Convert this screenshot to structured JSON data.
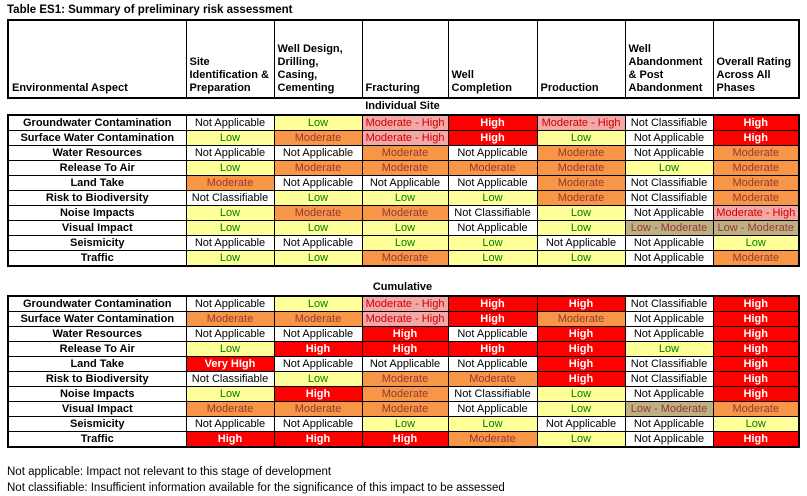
{
  "title": "Table ES1: Summary of preliminary risk assessment",
  "columns": [
    "Environmental Aspect",
    "Site Identification & Preparation",
    "Well Design, Drilling, Casing, Cementing",
    "Fracturing",
    "Well Completion",
    "Production",
    "Well Abandonment & Post Abandonment",
    "Overall Rating Across All Phases"
  ],
  "palette": {
    "Not Applicable": {
      "bg": "#FFFFFF",
      "fg": "#000000",
      "bold": false
    },
    "Not Classifiable": {
      "bg": "#FFFFFF",
      "fg": "#000000",
      "bold": false
    },
    "Low": {
      "bg": "#FFFF99",
      "fg": "#008000",
      "bold": false
    },
    "Moderate": {
      "bg": "#F79646",
      "fg": "#953735",
      "bold": false
    },
    "High": {
      "bg": "#FF0000",
      "fg": "#FFFFFF",
      "bold": true
    },
    "Very HIgh": {
      "bg": "#FF0000",
      "fg": "#FFFFFF",
      "bold": true
    },
    "Moderate - High": {
      "bg": "#F4A7A7",
      "fg": "#CC0000",
      "bold": false
    },
    "Low - Moderate": {
      "bg": "#BFB083",
      "fg": "#953735",
      "bold": false
    }
  },
  "sections": [
    {
      "label": "Individual Site",
      "rows": [
        {
          "aspect": "Groundwater Contamination",
          "cells": [
            "Not Applicable",
            "Low",
            "Moderate - High",
            "High",
            "Moderate - High",
            "Not Classifiable",
            "High"
          ]
        },
        {
          "aspect": "Surface Water Contamination",
          "cells": [
            "Low",
            "Moderate",
            "Moderate - High",
            "High",
            "Low",
            "Not Applicable",
            "High"
          ]
        },
        {
          "aspect": "Water Resources",
          "cells": [
            "Not Applicable",
            "Not Applicable",
            "Moderate",
            "Not Applicable",
            "Moderate",
            "Not Applicable",
            "Moderate"
          ]
        },
        {
          "aspect": "Release To Air",
          "cells": [
            "Low",
            "Moderate",
            "Moderate",
            "Moderate",
            "Moderate",
            "Low",
            "Moderate"
          ]
        },
        {
          "aspect": "Land Take",
          "cells": [
            "Moderate",
            "Not Applicable",
            "Not Applicable",
            "Not Applicable",
            "Moderate",
            "Not Classifiable",
            "Moderate"
          ]
        },
        {
          "aspect": "Risk to Biodiversity",
          "cells": [
            "Not Classifiable",
            "Low",
            "Low",
            "Low",
            "Moderate",
            "Not Classifiable",
            "Moderate"
          ]
        },
        {
          "aspect": "Noise Impacts",
          "cells": [
            "Low",
            "Moderate",
            "Moderate",
            "Not Classifiable",
            "Low",
            "Not Applicable",
            "Moderate - High"
          ]
        },
        {
          "aspect": "Visual Impact",
          "cells": [
            "Low",
            "Low",
            "Low",
            "Not Applicable",
            "Low",
            "Low - Moderate",
            "Low - Moderate"
          ]
        },
        {
          "aspect": "Seismicity",
          "cells": [
            "Not Applicable",
            "Not Applicable",
            "Low",
            "Low",
            "Not Applicable",
            "Not Applicable",
            "Low"
          ]
        },
        {
          "aspect": "Traffic",
          "cells": [
            "Low",
            "Low",
            "Moderate",
            "Low",
            "Low",
            "Not Applicable",
            "Moderate"
          ]
        }
      ]
    },
    {
      "label": "Cumulative",
      "rows": [
        {
          "aspect": "Groundwater Contamination",
          "cells": [
            "Not Applicable",
            "Low",
            "Moderate - High",
            "High",
            "High",
            "Not Classifiable",
            "High"
          ]
        },
        {
          "aspect": "Surface Water Contamination",
          "cells": [
            "Moderate",
            "Moderate",
            "Moderate - High",
            "High",
            "Moderate",
            "Not Applicable",
            "High"
          ]
        },
        {
          "aspect": "Water Resources",
          "cells": [
            "Not Applicable",
            "Not Applicable",
            "High",
            "Not Applicable",
            "High",
            "Not Applicable",
            "High"
          ]
        },
        {
          "aspect": "Release To Air",
          "cells": [
            "Low",
            "High",
            "High",
            "High",
            "High",
            "Low",
            "High"
          ]
        },
        {
          "aspect": "Land Take",
          "cells": [
            "Very HIgh",
            "Not Applicable",
            "Not Applicable",
            "Not Applicable",
            "High",
            "Not Classifiable",
            "High"
          ]
        },
        {
          "aspect": "Risk to Biodiversity",
          "cells": [
            "Not Classifiable",
            "Low",
            "Moderate",
            "Moderate",
            "High",
            "Not Classifiable",
            "High"
          ]
        },
        {
          "aspect": "Noise Impacts",
          "cells": [
            "Low",
            "High",
            "Moderate",
            "Not Classifiable",
            "Low",
            "Not Applicable",
            "High"
          ]
        },
        {
          "aspect": "Visual Impact",
          "cells": [
            "Moderate",
            "Moderate",
            "Moderate",
            "Not Applicable",
            "Low",
            "Low - Moderate",
            "Moderate"
          ]
        },
        {
          "aspect": "Seismicity",
          "cells": [
            "Not Applicable",
            "Not Applicable",
            "Low",
            "Low",
            "Not Applicable",
            "Not Applicable",
            "Low"
          ]
        },
        {
          "aspect": "Traffic",
          "cells": [
            "High",
            "High",
            "High",
            "Moderate",
            "Low",
            "Not Applicable",
            "High"
          ]
        }
      ]
    }
  ],
  "notes": [
    "Not applicable: Impact not relevant to this stage of development",
    "Not classifiable: Insufficient information available for the significance of this impact to be assessed"
  ]
}
